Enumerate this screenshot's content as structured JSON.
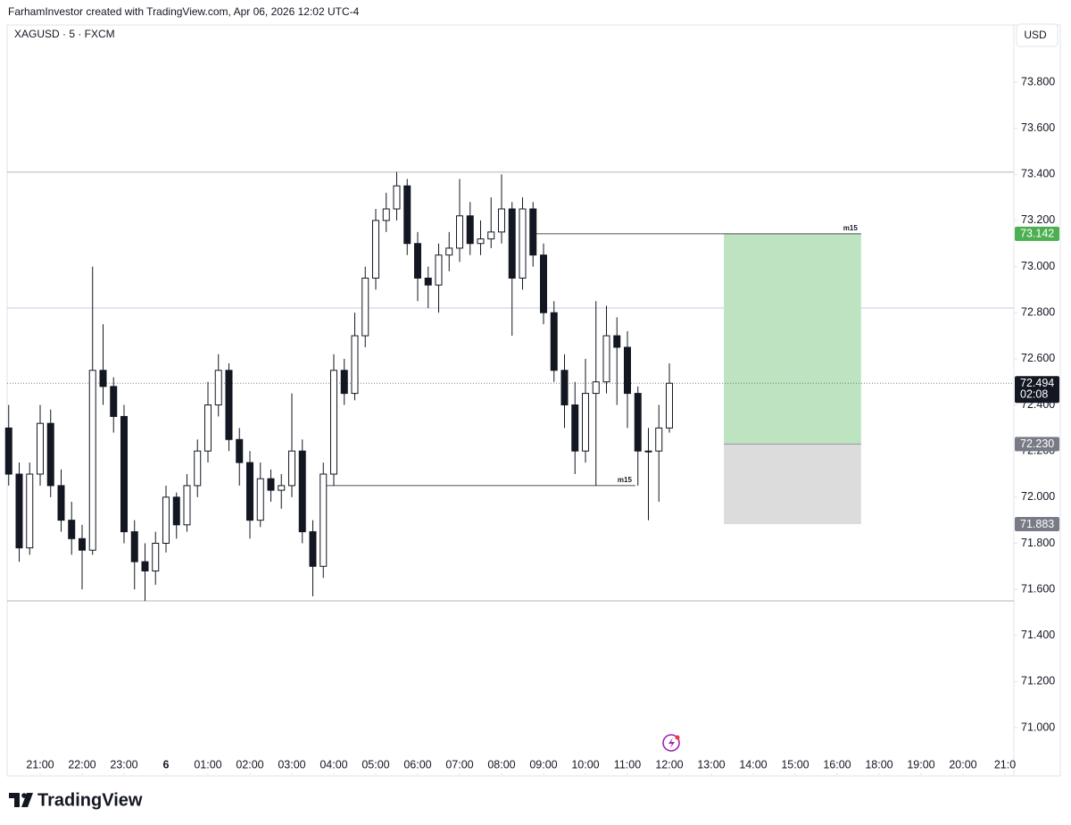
{
  "header": {
    "text": "FarhamInvestor created with TradingView.com, Apr 06, 2026 12:02 UTC-4"
  },
  "footer": {
    "logo": "TradingView"
  },
  "chart_data": {
    "type": "candlestick",
    "symbol": "XAGUSD · 5 · FXCM",
    "currency": "USD",
    "x": [
      0.25,
      0.5,
      0.75,
      1,
      1.25,
      1.5,
      1.75,
      2,
      2.25,
      2.5,
      2.75,
      3,
      3.25,
      3.5,
      3.75,
      4,
      4.25,
      4.5,
      4.75,
      5,
      5.25,
      5.5,
      5.75,
      6,
      6.25,
      6.5,
      6.75,
      7,
      7.25,
      7.5,
      7.75,
      8,
      8.25,
      8.5,
      8.75,
      9,
      9.25,
      9.5,
      9.75,
      10,
      10.25,
      10.5,
      10.75,
      11,
      11.25,
      11.5,
      11.75,
      12,
      12.25,
      12.5,
      12.75,
      13,
      13.25,
      13.5,
      13.75,
      14,
      14.25,
      14.5,
      14.75,
      15,
      15.25,
      15.5,
      15.75,
      16
    ],
    "open": [
      72.3,
      72.1,
      71.78,
      72.1,
      72.32,
      72.05,
      71.9,
      71.82,
      71.77,
      72.55,
      72.48,
      72.35,
      71.85,
      71.72,
      71.68,
      71.8,
      72.0,
      71.88,
      72.05,
      72.2,
      72.4,
      72.55,
      72.25,
      72.15,
      71.9,
      72.08,
      72.03,
      72.05,
      72.2,
      71.85,
      71.7,
      72.1,
      72.55,
      72.45,
      72.7,
      72.95,
      73.2,
      73.25,
      73.35,
      73.1,
      72.95,
      72.92,
      73.05,
      73.08,
      73.22,
      73.1,
      73.12,
      73.15,
      73.25,
      72.95,
      73.25,
      73.05,
      72.8,
      72.55,
      72.4,
      72.2,
      72.45,
      72.5,
      72.7,
      72.65,
      72.45,
      72.2,
      72.2,
      72.3
    ],
    "high": [
      72.4,
      72.15,
      72.15,
      72.4,
      72.38,
      72.12,
      71.98,
      71.88,
      73.0,
      72.75,
      72.52,
      72.4,
      71.9,
      71.8,
      71.85,
      72.05,
      72.02,
      72.1,
      72.25,
      72.5,
      72.62,
      72.58,
      72.3,
      72.2,
      72.15,
      72.12,
      72.1,
      72.45,
      72.25,
      71.9,
      72.15,
      72.62,
      72.6,
      72.8,
      73.0,
      73.25,
      73.32,
      73.41,
      73.38,
      73.15,
      73.0,
      73.1,
      73.15,
      73.38,
      73.28,
      73.2,
      73.3,
      73.4,
      73.28,
      73.3,
      73.28,
      73.1,
      72.85,
      72.62,
      72.5,
      72.6,
      72.85,
      72.83,
      72.78,
      72.72,
      72.48,
      72.3,
      72.4,
      72.58
    ],
    "low": [
      72.05,
      71.72,
      71.75,
      72.05,
      72.0,
      71.85,
      71.75,
      71.6,
      71.75,
      72.4,
      72.28,
      71.8,
      71.6,
      71.55,
      71.62,
      71.76,
      71.82,
      71.85,
      72.0,
      72.15,
      72.35,
      72.2,
      72.05,
      71.82,
      71.87,
      71.98,
      71.95,
      72.0,
      71.8,
      71.57,
      71.65,
      72.05,
      72.4,
      72.42,
      72.65,
      72.9,
      73.15,
      73.2,
      73.05,
      72.85,
      72.82,
      72.8,
      72.98,
      73.02,
      73.05,
      73.05,
      73.08,
      73.1,
      72.7,
      72.9,
      73.0,
      72.75,
      72.5,
      72.3,
      72.1,
      72.15,
      72.05,
      72.45,
      72.4,
      72.3,
      72.05,
      71.9,
      71.98,
      72.28
    ],
    "close": [
      72.1,
      71.78,
      72.1,
      72.32,
      72.05,
      71.9,
      71.82,
      71.77,
      72.55,
      72.48,
      72.35,
      71.85,
      71.72,
      71.68,
      71.8,
      72.0,
      71.88,
      72.05,
      72.2,
      72.4,
      72.55,
      72.25,
      72.15,
      71.9,
      72.08,
      72.03,
      72.05,
      72.2,
      71.85,
      71.7,
      72.1,
      72.55,
      72.45,
      72.7,
      72.95,
      73.2,
      73.25,
      73.35,
      73.1,
      72.95,
      72.92,
      73.05,
      73.08,
      73.22,
      73.1,
      73.12,
      73.15,
      73.25,
      72.95,
      73.25,
      73.05,
      72.8,
      72.55,
      72.4,
      72.2,
      72.45,
      72.5,
      72.7,
      72.65,
      72.45,
      72.2,
      72.2,
      72.3,
      72.494
    ],
    "xlim": [
      0.213,
      24.213
    ],
    "xticks": [
      {
        "value": 1,
        "label": "21:00"
      },
      {
        "value": 2,
        "label": "22:00"
      },
      {
        "value": 3,
        "label": "23:00"
      },
      {
        "value": 4,
        "label": "6"
      },
      {
        "value": 5,
        "label": "01:00"
      },
      {
        "value": 6,
        "label": "02:00"
      },
      {
        "value": 7,
        "label": "03:00"
      },
      {
        "value": 8,
        "label": "04:00"
      },
      {
        "value": 9,
        "label": "05:00"
      },
      {
        "value": 10,
        "label": "06:00"
      },
      {
        "value": 11,
        "label": "07:00"
      },
      {
        "value": 12,
        "label": "08:00"
      },
      {
        "value": 13,
        "label": "09:00"
      },
      {
        "value": 14,
        "label": "10:00"
      },
      {
        "value": 15,
        "label": "11:00"
      },
      {
        "value": 16,
        "label": "12:00"
      },
      {
        "value": 17,
        "label": "13:00"
      },
      {
        "value": 18,
        "label": "14:00"
      },
      {
        "value": 19,
        "label": "15:00"
      },
      {
        "value": 20,
        "label": "16:00"
      },
      {
        "value": 21,
        "label": "18:00"
      },
      {
        "value": 22,
        "label": "19:00"
      },
      {
        "value": 23,
        "label": "20:00"
      },
      {
        "value": 24,
        "label": "21:0"
      }
    ],
    "ylim": [
      70.795,
      74.04
    ],
    "yticks": [
      {
        "value": 71,
        "label": "71.000"
      },
      {
        "value": 71.2,
        "label": "71.200"
      },
      {
        "value": 71.4,
        "label": "71.400"
      },
      {
        "value": 71.6,
        "label": "71.600"
      },
      {
        "value": 71.8,
        "label": "71.800"
      },
      {
        "value": 72,
        "label": "72.000"
      },
      {
        "value": 72.2,
        "label": "72.200"
      },
      {
        "value": 72.4,
        "label": "72.400"
      },
      {
        "value": 72.6,
        "label": "72.600"
      },
      {
        "value": 72.8,
        "label": "72.800"
      },
      {
        "value": 73,
        "label": "73.000"
      },
      {
        "value": 73.2,
        "label": "73.200"
      },
      {
        "value": 73.4,
        "label": "73.400"
      },
      {
        "value": 73.6,
        "label": "73.600"
      },
      {
        "value": 73.8,
        "label": "73.800"
      }
    ],
    "levels": [
      73.41,
      72.82,
      71.55
    ],
    "segments": [
      {
        "label": "m15",
        "value": 73.142,
        "x": [
          12.81,
          20.57
        ]
      },
      {
        "label": "m15",
        "value": 72.05,
        "x": [
          7.7,
          15.19
        ]
      }
    ],
    "position": {
      "x": [
        17.3,
        20.57
      ],
      "target": 73.142,
      "entry": {
        "value": 72.23,
        "label": "72.230"
      },
      "stop": 71.883
    },
    "last_price": {
      "value": 72.494,
      "countdown": "02:08"
    }
  }
}
